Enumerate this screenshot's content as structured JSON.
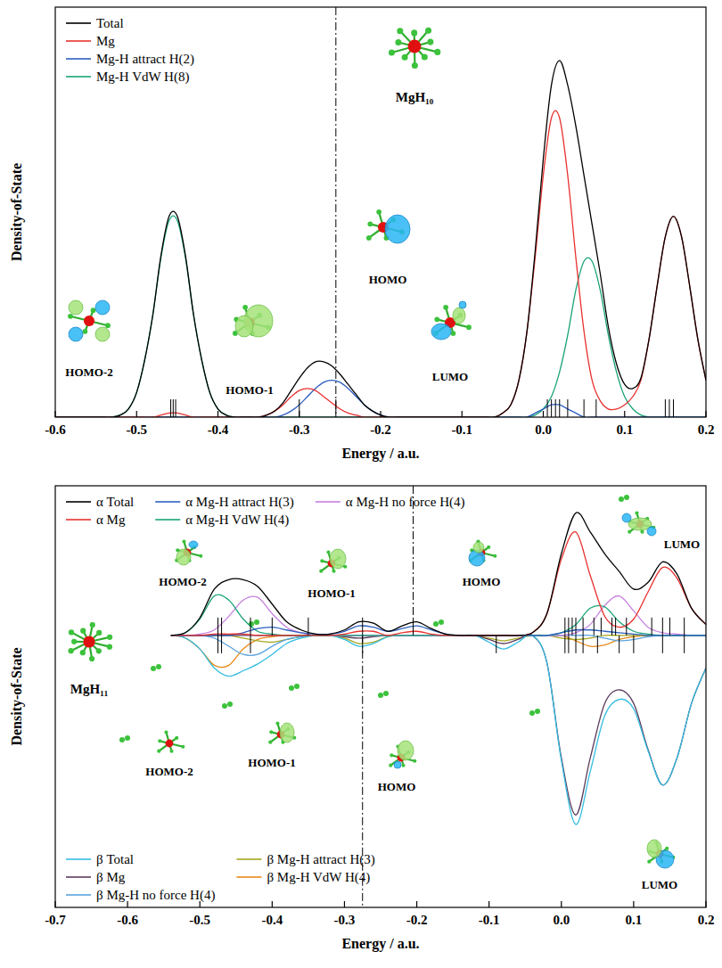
{
  "chart_data": [
    {
      "type": "line",
      "x_label": "Energy / a.u.",
      "y_label": "Density-of-State",
      "xlim": [
        -0.6,
        0.2
      ],
      "xticks": [
        -0.6,
        -0.5,
        -0.4,
        -0.3,
        -0.2,
        -0.1,
        {
          "value": 0,
          "label": "0.0"
        },
        0.1,
        0.2
      ],
      "ylim": [
        0,
        100
      ],
      "tick_labels": "x",
      "legend": "upper left",
      "x": [
        -0.6,
        -0.59,
        -0.58,
        -0.57,
        -0.56,
        -0.55,
        -0.54,
        -0.53,
        -0.52,
        -0.51,
        -0.5,
        -0.49,
        -0.48,
        -0.47,
        -0.46,
        -0.45,
        -0.44,
        -0.43,
        -0.42,
        -0.41,
        -0.4,
        -0.39,
        -0.38,
        -0.37,
        -0.36,
        -0.35,
        -0.34,
        -0.33,
        -0.32,
        -0.31,
        -0.3,
        -0.29,
        -0.28,
        -0.27,
        -0.26,
        -0.25,
        -0.24,
        -0.23,
        -0.22,
        -0.21,
        -0.2,
        -0.19,
        -0.18,
        -0.17,
        -0.16,
        -0.15,
        -0.14,
        -0.13,
        -0.12,
        -0.11,
        -0.1,
        -0.09,
        -0.08,
        -0.07,
        -0.06,
        -0.05,
        -0.04,
        -0.03,
        -0.02,
        -0.01,
        0,
        0.01,
        0.02,
        0.03,
        0.04,
        0.05,
        0.06,
        0.07,
        0.08,
        0.09,
        0.1,
        0.11,
        0.12,
        0.13,
        0.14,
        0.15,
        0.16,
        0.17,
        0.18,
        0.19,
        0.2
      ],
      "series": [
        {
          "name": "Total",
          "color": "#000000",
          "values": [
            0,
            0,
            0,
            0,
            0,
            0,
            0,
            0,
            0.5,
            2,
            6,
            14,
            25,
            39.5,
            49,
            49,
            39.5,
            25,
            14,
            6,
            2,
            0.5,
            0,
            0,
            0,
            0,
            0.5,
            1.5,
            3.5,
            6.5,
            9.5,
            12,
            13.5,
            13.5,
            12.5,
            10.5,
            8,
            5.5,
            3,
            1.5,
            0.5,
            0,
            0,
            0,
            0,
            0,
            0,
            0,
            0,
            0,
            0,
            0,
            0,
            0,
            0,
            1,
            3,
            9,
            21,
            40.5,
            63,
            81,
            87,
            81,
            71,
            59,
            47,
            35,
            22,
            13,
            8,
            7,
            9.5,
            19,
            32,
            44,
            49,
            44,
            32,
            19,
            9
          ]
        },
        {
          "name": "Mg",
          "color": "#e8312f",
          "values": [
            0,
            0,
            0,
            0,
            0,
            0,
            0,
            0,
            0,
            0,
            0,
            0,
            0,
            0.5,
            1,
            1,
            0.5,
            0,
            0,
            0,
            0,
            0,
            0,
            0,
            0,
            0,
            0.5,
            1.5,
            3,
            5,
            6.5,
            7,
            6.5,
            5,
            3.5,
            2,
            1,
            0.5,
            0,
            0,
            0,
            0,
            0,
            0,
            0,
            0,
            0,
            0,
            0,
            0,
            0,
            0,
            0,
            0,
            0,
            1,
            3,
            9,
            21,
            39,
            59,
            73,
            73,
            59,
            39,
            21,
            9,
            4,
            2,
            2,
            3,
            5,
            9,
            19,
            32,
            44,
            49,
            44,
            32,
            19,
            9
          ]
        },
        {
          "name": "Mg-H attract H(2)",
          "color": "#2e5fbf",
          "values": [
            0,
            0,
            0,
            0,
            0,
            0,
            0,
            0,
            0,
            0,
            0,
            0,
            0,
            0,
            0,
            0,
            0,
            0,
            0,
            0,
            0,
            0,
            0,
            0,
            0,
            0,
            0,
            0,
            0.5,
            1.5,
            3,
            5,
            7,
            8.5,
            9,
            8.5,
            7,
            5,
            3,
            1.5,
            0.5,
            0,
            0,
            0,
            0,
            0,
            0,
            0,
            0,
            0,
            0,
            0,
            0,
            0,
            0,
            0,
            0,
            0,
            0,
            1,
            2,
            3,
            3,
            2,
            1,
            0,
            0,
            0,
            0,
            0,
            0,
            0,
            0,
            0,
            0,
            0,
            0,
            0,
            0,
            0,
            0
          ]
        },
        {
          "name": "Mg-H VdW H(8)",
          "color": "#1aa37a",
          "values": [
            0,
            0,
            0,
            0,
            0,
            0,
            0,
            0,
            0.5,
            2,
            6,
            14,
            25,
            39,
            48,
            48,
            39,
            25,
            14,
            6,
            2,
            0.5,
            0,
            0,
            0,
            0,
            0,
            0,
            0,
            0,
            0,
            0,
            0,
            0,
            0,
            0,
            0,
            0,
            0,
            0,
            0,
            0,
            0,
            0,
            0,
            0,
            0,
            0,
            0,
            0,
            0,
            0,
            0,
            0,
            0,
            0,
            0,
            0,
            0,
            0.5,
            2,
            5,
            11,
            20,
            31,
            38,
            38,
            31,
            20,
            11,
            5,
            2,
            0.5,
            0,
            0,
            0,
            0,
            0,
            0,
            0,
            0
          ]
        }
      ],
      "sticks": [
        -0.458,
        -0.455,
        -0.452,
        -0.3,
        -0.255,
        0.005,
        0.01,
        0.015,
        0.02,
        0.03,
        0.05,
        0.065,
        0.15,
        0.155,
        0.16
      ],
      "homo": -0.255,
      "annotations": [
        "MgH₁₀",
        "HOMO-2",
        "HOMO-1",
        "HOMO",
        "LUMO"
      ]
    },
    {
      "type": "line",
      "x_label": "Energy / a.u.",
      "y_label": "Density-of-State",
      "xlim": [
        -0.7,
        0.2
      ],
      "xticks": [
        -0.7,
        -0.6,
        -0.5,
        -0.4,
        -0.3,
        -0.2,
        -0.1,
        {
          "value": 0,
          "label": "0.0"
        },
        0.1,
        0.2
      ],
      "ylim": [
        -100,
        55
      ],
      "tick_labels": "x",
      "legend": "upper left",
      "x": [
        -0.7,
        -0.68,
        -0.66,
        -0.64,
        -0.62,
        -0.6,
        -0.58,
        -0.56,
        -0.54,
        -0.52,
        -0.5,
        -0.48,
        -0.46,
        -0.44,
        -0.42,
        -0.4,
        -0.38,
        -0.36,
        -0.34,
        -0.32,
        -0.3,
        -0.28,
        -0.26,
        -0.24,
        -0.22,
        -0.2,
        -0.18,
        -0.16,
        -0.14,
        -0.12,
        -0.1,
        -0.08,
        -0.06,
        -0.04,
        -0.02,
        0,
        0.02,
        0.04,
        0.06,
        0.08,
        0.1,
        0.12,
        0.14,
        0.16,
        0.18,
        0.2
      ],
      "series": [
        {
          "name": "α Total",
          "color": "#000000",
          "values": [
            null,
            null,
            null,
            null,
            null,
            null,
            null,
            null,
            0,
            1,
            6.5,
            17,
            20.5,
            20.5,
            18,
            11.5,
            5,
            2,
            0.5,
            0.5,
            2,
            5,
            4.5,
            1.5,
            3.5,
            5,
            2.5,
            0.5,
            0,
            0,
            0,
            0,
            0,
            1,
            8,
            30,
            45,
            38,
            30,
            23.5,
            17,
            19.5,
            27,
            22.5,
            10,
            4
          ]
        },
        {
          "name": "α Mg",
          "color": "#e8312f",
          "values": [
            null,
            null,
            null,
            null,
            null,
            null,
            null,
            null,
            0,
            0,
            0,
            0.5,
            0.5,
            0.5,
            0,
            0,
            0,
            0,
            0,
            0,
            0.5,
            1.5,
            1.5,
            0,
            1,
            1.5,
            0.5,
            0,
            0,
            0,
            0,
            0,
            0,
            1,
            8,
            28,
            38,
            22,
            7,
            3,
            6,
            16,
            25,
            21,
            10,
            4
          ]
        },
        {
          "name": "α Mg-H attract H(3)",
          "color": "#2e5fbf",
          "values": [
            null,
            null,
            null,
            null,
            null,
            null,
            null,
            null,
            0,
            0,
            0,
            0,
            0,
            1,
            2.5,
            3,
            2,
            1,
            0.5,
            0.5,
            1.5,
            3.5,
            3,
            1.5,
            2.5,
            3.5,
            2,
            0.5,
            0,
            0,
            0,
            0,
            0,
            0,
            0,
            1,
            2,
            2,
            1.5,
            1,
            0.5,
            0,
            0,
            0,
            0,
            0
          ]
        },
        {
          "name": "α Mg-H VdW H(4)",
          "color": "#1aa37a",
          "values": [
            null,
            null,
            null,
            null,
            null,
            null,
            null,
            null,
            0,
            1,
            6,
            14.5,
            13,
            6,
            1.5,
            0.5,
            0,
            0,
            0,
            0,
            0,
            0,
            0,
            0,
            0,
            0,
            0,
            0,
            0,
            0,
            0,
            0,
            0,
            0,
            0,
            1,
            4,
            10,
            10.5,
            5,
            1.5,
            0.5,
            0,
            0,
            0,
            0
          ]
        },
        {
          "name": "α Mg-H no force H(4)",
          "color": "#c77fe0",
          "values": [
            null,
            null,
            null,
            null,
            null,
            null,
            null,
            null,
            0,
            0,
            0.5,
            2,
            7,
            13,
            14,
            8,
            3,
            1,
            0,
            0,
            0,
            0,
            0,
            0,
            0,
            0,
            0,
            0,
            0,
            0,
            0,
            0,
            0,
            0,
            0,
            0,
            1,
            4,
            11,
            14.5,
            9,
            3,
            1,
            0.5,
            0,
            0
          ]
        },
        {
          "name": "β Total",
          "color": "#33bde0",
          "values": [
            null,
            null,
            null,
            null,
            null,
            null,
            null,
            null,
            0,
            -1,
            -5,
            -12,
            -15,
            -13,
            -10.5,
            -7,
            -3,
            -1,
            0,
            0,
            -1.5,
            -4,
            -3,
            -0.5,
            0,
            0,
            0,
            0,
            0,
            0,
            -2.5,
            -5,
            -2.5,
            0,
            -10,
            -46,
            -69.5,
            -50,
            -29.5,
            -23.5,
            -27,
            -42.5,
            -55,
            -45,
            -25,
            -12
          ]
        },
        {
          "name": "β Mg",
          "color": "#5c3b5c",
          "values": [
            null,
            null,
            null,
            null,
            null,
            null,
            null,
            null,
            0,
            0,
            0,
            0,
            0,
            0,
            0,
            0,
            0,
            0,
            0,
            0,
            -0.5,
            -1,
            -0.5,
            0,
            0,
            0,
            0,
            0,
            0,
            0,
            -1.5,
            -3,
            -1.5,
            0,
            -10,
            -45,
            -66,
            -45,
            -25,
            -20,
            -25,
            -42,
            -55,
            -45,
            -25,
            -12
          ]
        },
        {
          "name": "β Mg-H no force H(4)",
          "color": "#5aa3dd",
          "values": [
            null,
            null,
            null,
            null,
            null,
            null,
            null,
            null,
            0,
            0,
            0,
            -1,
            -4,
            -7,
            -7,
            -4,
            -1.5,
            -0.5,
            0,
            0,
            0,
            0,
            0,
            0,
            0,
            0,
            0,
            0,
            0,
            0,
            0,
            0,
            0,
            0,
            0,
            0,
            0,
            0,
            -1,
            -2,
            -1.5,
            -0.5,
            0,
            0,
            0,
            0
          ]
        },
        {
          "name": "β Mg-H attract H(3)",
          "color": "#a6a620",
          "values": [
            null,
            null,
            null,
            null,
            null,
            null,
            null,
            null,
            0,
            0,
            0,
            0,
            0,
            -1,
            -2,
            -2.5,
            -1.5,
            -0.5,
            0,
            0,
            -1,
            -3,
            -2.5,
            -0.5,
            0,
            0,
            0,
            0,
            0,
            0,
            -1,
            -2,
            -1,
            0,
            0,
            -1,
            -1.5,
            -1,
            0,
            0,
            0,
            0,
            0,
            0,
            0,
            0
          ]
        },
        {
          "name": "β Mg-H VdW H(4)",
          "color": "#e88a1a",
          "values": [
            null,
            null,
            null,
            null,
            null,
            null,
            null,
            null,
            0,
            -1,
            -5,
            -11,
            -11,
            -5,
            -1.5,
            -0.5,
            0,
            0,
            0,
            0,
            0,
            0,
            0,
            0,
            0,
            0,
            0,
            0,
            0,
            0,
            0,
            0,
            0,
            0,
            0,
            0,
            -2,
            -4,
            -3.5,
            -1.5,
            -0.5,
            0,
            0,
            0,
            0,
            0
          ]
        }
      ],
      "alpha_sticks": [
        -0.475,
        -0.47,
        -0.43,
        -0.4,
        -0.35,
        -0.275,
        -0.205,
        0.005,
        0.01,
        0.015,
        0.02,
        0.03,
        0.045,
        0.055,
        0.07,
        0.075,
        0.09,
        0.125,
        0.14,
        0.15,
        0.17
      ],
      "beta_sticks": [
        -0.475,
        -0.47,
        -0.43,
        -0.275,
        -0.09,
        0.005,
        0.01,
        0.02,
        0.03,
        0.05,
        0.08,
        0.1,
        0.14,
        0.17
      ],
      "alpha_homo": -0.205,
      "beta_homo": -0.275,
      "annotations": [
        "MgH₁₁",
        "HOMO-2",
        "HOMO-1",
        "HOMO",
        "LUMO",
        "HOMO-2",
        "HOMO-1",
        "HOMO",
        "LUMO"
      ]
    }
  ]
}
